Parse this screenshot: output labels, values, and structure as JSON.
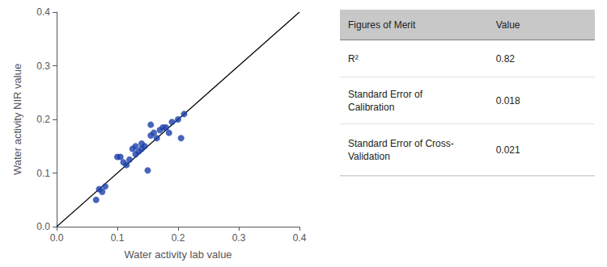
{
  "chart_data": {
    "type": "scatter",
    "xlabel": "Water activity lab value",
    "ylabel": "Water activity NIR value",
    "series": [
      {
        "type": "scatter",
        "color": "#1a3faa",
        "x": [
          0.07,
          0.075,
          0.065,
          0.08,
          0.1,
          0.105,
          0.11,
          0.115,
          0.12,
          0.125,
          0.13,
          0.13,
          0.135,
          0.14,
          0.14,
          0.145,
          0.15,
          0.155,
          0.155,
          0.16,
          0.165,
          0.17,
          0.175,
          0.18,
          0.185,
          0.19,
          0.2,
          0.205,
          0.21
        ],
        "values": [
          0.07,
          0.065,
          0.05,
          0.075,
          0.13,
          0.13,
          0.12,
          0.115,
          0.125,
          0.145,
          0.135,
          0.15,
          0.14,
          0.145,
          0.155,
          0.15,
          0.105,
          0.17,
          0.19,
          0.175,
          0.165,
          0.18,
          0.185,
          0.185,
          0.175,
          0.195,
          0.2,
          0.165,
          0.21
        ]
      },
      {
        "type": "line",
        "color": "#000000",
        "x": [
          0.0,
          0.4
        ],
        "values": [
          0.0,
          0.4
        ]
      }
    ],
    "xlim": [
      0.0,
      0.4
    ],
    "ylim": [
      0.0,
      0.4
    ],
    "xticks": [
      {
        "value": 0.0,
        "label": "0.0"
      },
      0.1,
      0.2,
      0.3,
      0.4
    ],
    "yticks": [
      {
        "value": 0.0,
        "label": "0.0"
      },
      0.1,
      0.2,
      0.3,
      0.4
    ],
    "grid": false,
    "table": {
      "color": "#c8c8c8",
      "header": [
        "Figures of Merit",
        "Value"
      ],
      "rows": [
        [
          "R²",
          "0.82"
        ],
        [
          "Standard Error of\nCalibration",
          "0.018"
        ],
        [
          "Standard Error of Cross-\nValidation",
          "0.021"
        ]
      ]
    }
  }
}
